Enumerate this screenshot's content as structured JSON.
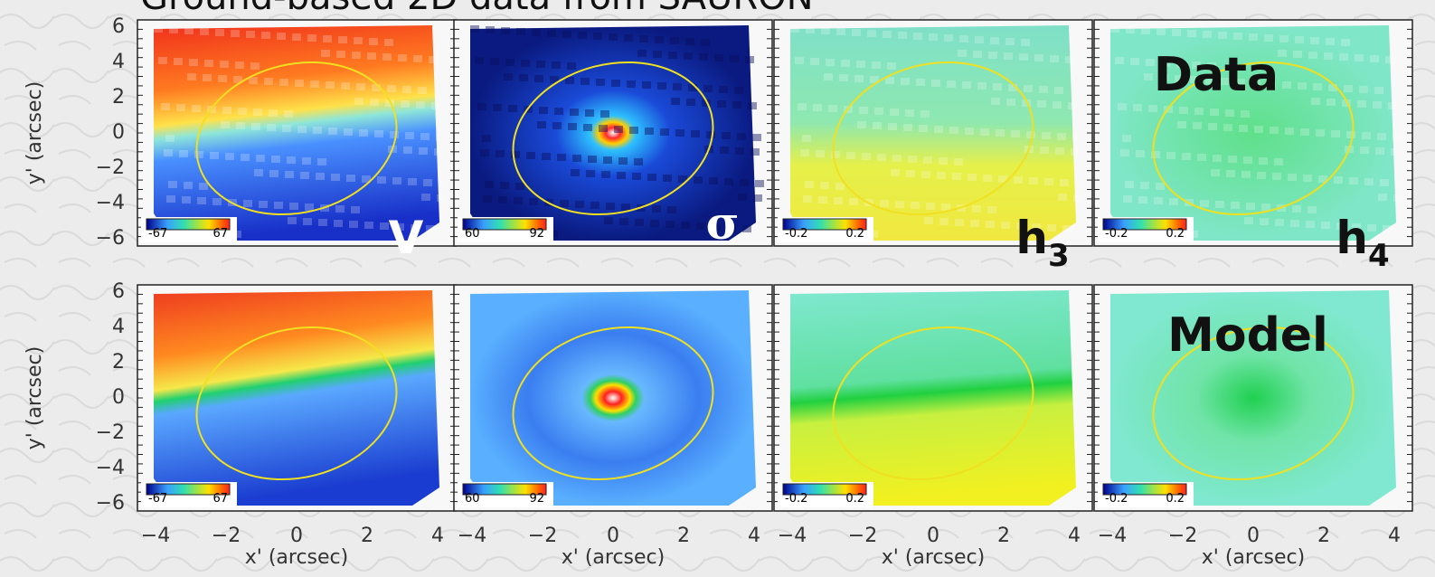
{
  "title": "Ground-based 2D data from SAURON",
  "y_axis_label": "y' (arcsec)",
  "x_axis_label": "x' (arcsec)",
  "y_ticks": [
    "6",
    "4",
    "2",
    "0",
    "−2",
    "−4",
    "−6"
  ],
  "x_ticks": [
    "−4",
    "−2",
    "0",
    "2",
    "4"
  ],
  "rows": [
    {
      "label": "Data"
    },
    {
      "label": "Model"
    }
  ],
  "panels": [
    {
      "symbol": "V",
      "colorbar": [
        "-67",
        "67"
      ]
    },
    {
      "symbol": "σ",
      "colorbar": [
        "60",
        "92"
      ]
    },
    {
      "symbol": "h",
      "subscript": "3",
      "colorbar": [
        "-0.2",
        "0.2"
      ]
    },
    {
      "symbol": "h",
      "subscript": "4",
      "colorbar": [
        "-0.2",
        "0.2"
      ]
    }
  ]
}
